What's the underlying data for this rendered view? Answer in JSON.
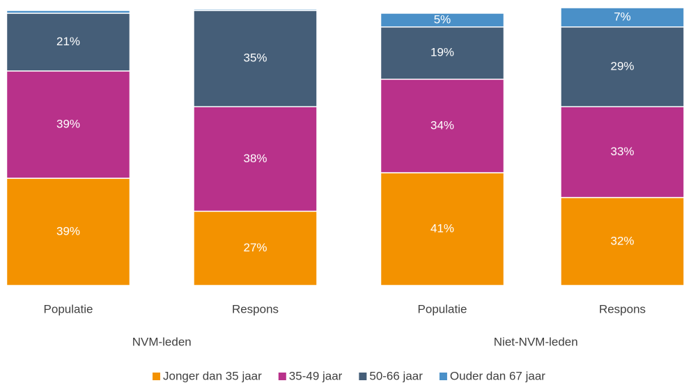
{
  "chart_data": {
    "type": "stacked_bar",
    "categories": [
      "Populatie",
      "Respons",
      "Populatie",
      "Respons"
    ],
    "groups": [
      "NVM-leden",
      "Niet-NVM-leden"
    ],
    "series": [
      {
        "name": "Jonger dan 35 jaar",
        "color": "#f39200",
        "values": [
          39,
          27,
          41,
          32
        ],
        "value_labels": [
          "39%",
          "27%",
          "41%",
          "32%"
        ]
      },
      {
        "name": "35-49 jaar",
        "color": "#b8318a",
        "values": [
          39,
          38,
          34,
          33
        ],
        "value_labels": [
          "39%",
          "38%",
          "34%",
          "33%"
        ]
      },
      {
        "name": "50-66 jaar",
        "color": "#455e78",
        "values": [
          21,
          35,
          19,
          29
        ],
        "value_labels": [
          "21%",
          "35%",
          "19%",
          "29%"
        ]
      },
      {
        "name": "Ouder dan 67 jaar",
        "color": "#4a90c8",
        "values": [
          1,
          0.5,
          5,
          7
        ],
        "value_labels": [
          null,
          null,
          "5%",
          "7%"
        ]
      }
    ],
    "ylim": [
      0,
      100
    ]
  }
}
